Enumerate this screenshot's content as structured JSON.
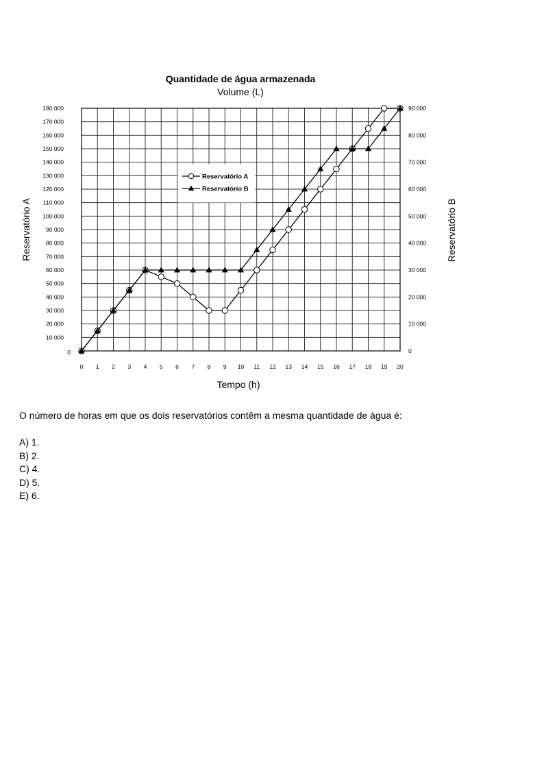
{
  "chart_data": {
    "type": "line",
    "title": "Quantidade de água armazenada",
    "subtitle": "Volume (L)",
    "xlabel": "Tempo (h)",
    "ylabel_left": "Reservatório A",
    "ylabel_right": "Reservatório B",
    "x": [
      0,
      1,
      2,
      3,
      4,
      5,
      6,
      7,
      8,
      9,
      10,
      11,
      12,
      13,
      14,
      15,
      16,
      17,
      18,
      19,
      20
    ],
    "x_tick_labels": [
      "0",
      "1",
      "2",
      "3",
      "4",
      "5",
      "6",
      "7",
      "8",
      "9",
      "10",
      "11",
      "12",
      "13",
      "14",
      "15",
      "16",
      "17",
      "18",
      "19",
      "20"
    ],
    "ylim_left": [
      0,
      180000
    ],
    "ylim_right": [
      0,
      90000
    ],
    "y_left_tick_labels": [
      "0",
      "10 000",
      "20 000",
      "30 000",
      "40 000",
      "50 000",
      "60 000",
      "70 000",
      "80 000",
      "90 000",
      "100 000",
      "110 000",
      "120 000",
      "130 000",
      "140 000",
      "150 000",
      "160 000",
      "170 000",
      "180 000"
    ],
    "y_right_tick_labels": [
      "0",
      "10 000",
      "20 000",
      "30 000",
      "40 000",
      "50 000",
      "60 000",
      "70 000",
      "80 000",
      "90 000"
    ],
    "grid": true,
    "legend_position": "upper-left",
    "series": [
      {
        "name": "Reservatório A",
        "axis": "left",
        "marker": "circle",
        "values": [
          0,
          15000,
          30000,
          45000,
          60000,
          55000,
          50000,
          40000,
          30000,
          30000,
          45000,
          60000,
          75000,
          90000,
          105000,
          120000,
          135000,
          150000,
          165000,
          180000,
          180000
        ]
      },
      {
        "name": "Reservatório B",
        "axis": "right",
        "marker": "triangle",
        "values": [
          0,
          7500,
          15000,
          22500,
          30000,
          30000,
          30000,
          30000,
          30000,
          30000,
          30000,
          37500,
          45000,
          52500,
          60000,
          67500,
          75000,
          75000,
          75000,
          82500,
          90000
        ]
      }
    ]
  },
  "question": {
    "text": "O número de horas em que os dois reservatórios contêm a mesma quantidade de água é:",
    "options": [
      "A) 1.",
      "B) 2.",
      "C) 4.",
      "D) 5.",
      "E) 6."
    ]
  }
}
